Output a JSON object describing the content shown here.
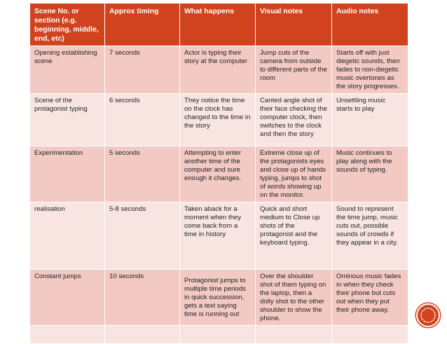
{
  "columns": [
    "Scene No. or section (e.g. beginning, middle, end, etc)",
    "Approx timing",
    "What happens",
    "Visual notes",
    "Audio notes"
  ],
  "rows": [
    {
      "scene": "Opening establishing scene",
      "timing": "7 seconds",
      "what": "Actor is typing their story at the computer",
      "visual": "Jump cuts of the camera from outside to different parts of the room",
      "audio": "Starts off with just diegetic sounds, then fades to non-diegetic music overtones as the story progresses."
    },
    {
      "scene": "Scene of the protagonist typing",
      "timing": "6 seconds",
      "what": "They notice the time on the clock has changed to the time in the story",
      "visual": "Canted angle shot of their face checking the computer clock, then switches to the clock and then the story",
      "audio": "Unsettling music starts to play"
    },
    {
      "scene": "Experimentation",
      "timing": "5 seconds",
      "what": "Attempting to enter another time of the computer and sure enough it changes.",
      "visual": "Extreme close up of the protagonists eyes and close up of hands typing, jumps to shot of words showing up on the monitor.",
      "audio": "Music continues to play along with the sounds of typing."
    },
    {
      "scene": "realisation",
      "timing": "5-8 seconds",
      "what": "Taken aback for a moment when they come back from a time in history",
      "visual": "Quick and short medium to Close up shots of the protagonist and the keyboard typing.",
      "audio": "Sound to represent the time jump, music cuts out, possible sounds of crowds if they appear in a city."
    },
    {
      "scene": "Constant jumps",
      "timing": "10 seconds",
      "what": "Protagonist  jumps to multiple time periods in quick succession, gets a text saying time is running out",
      "visual": "Over the shoulder shot of them typing on the laptop, then a dolly shot to the other shoulder to show the phone.",
      "audio": "Ominous music fades in when they check their phone but cuts out when they put their phone away."
    },
    {
      "scene": "",
      "timing": "",
      "what": "",
      "visual": "",
      "audio": ""
    }
  ],
  "colors": {
    "header": "#d1431f",
    "row_odd": "#f2c9c3",
    "row_even": "#f8e5e2"
  },
  "icons": {
    "corner": "circle-ornament-icon"
  }
}
